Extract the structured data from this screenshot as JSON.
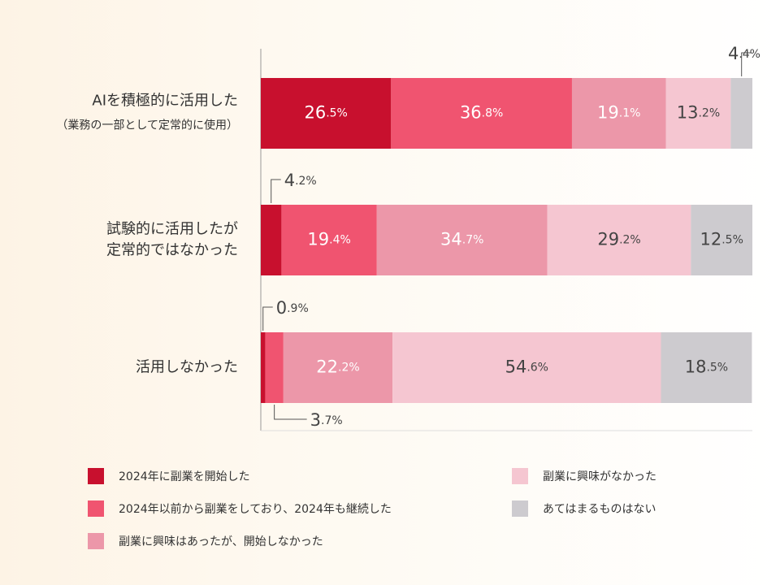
{
  "chart_data": {
    "type": "bar",
    "orientation": "horizontal",
    "stacked": true,
    "unit": "%",
    "xlim": [
      0,
      100
    ],
    "categories": [
      [
        "AIを積極的に活用した",
        "（業務の一部として定常的に使用）"
      ],
      [
        "試験的に活用したが",
        "定常的ではなかった"
      ],
      [
        "活用しなかった"
      ]
    ],
    "series": [
      {
        "name": "2024年に副業を開始した",
        "color": "#c8102e",
        "values": [
          26.5,
          4.2,
          0.9
        ]
      },
      {
        "name": "2024年以前から副業をしており、2024年も継続した",
        "color": "#f05470",
        "values": [
          36.8,
          19.4,
          3.7
        ]
      },
      {
        "name": "副業に興味はあったが、開始しなかった",
        "color": "#ec97a9",
        "values": [
          19.1,
          34.7,
          22.2
        ]
      },
      {
        "name": "副業に興味がなかった",
        "color": "#f5c6d1",
        "values": [
          13.2,
          29.2,
          54.6
        ]
      },
      {
        "name": "あてはまるものはない",
        "color": "#cdcbcf",
        "values": [
          4.4,
          12.5,
          18.5
        ]
      }
    ],
    "value_labels": [
      [
        "26.5%",
        "36.8%",
        "19.1%",
        "13.2%",
        "4.4%"
      ],
      [
        "4.2%",
        "19.4%",
        "34.7%",
        "29.2%",
        "12.5%"
      ],
      [
        "0.9%",
        "3.7%",
        "22.2%",
        "54.6%",
        "18.5%"
      ]
    ],
    "legend_position": "bottom",
    "grid": false
  }
}
